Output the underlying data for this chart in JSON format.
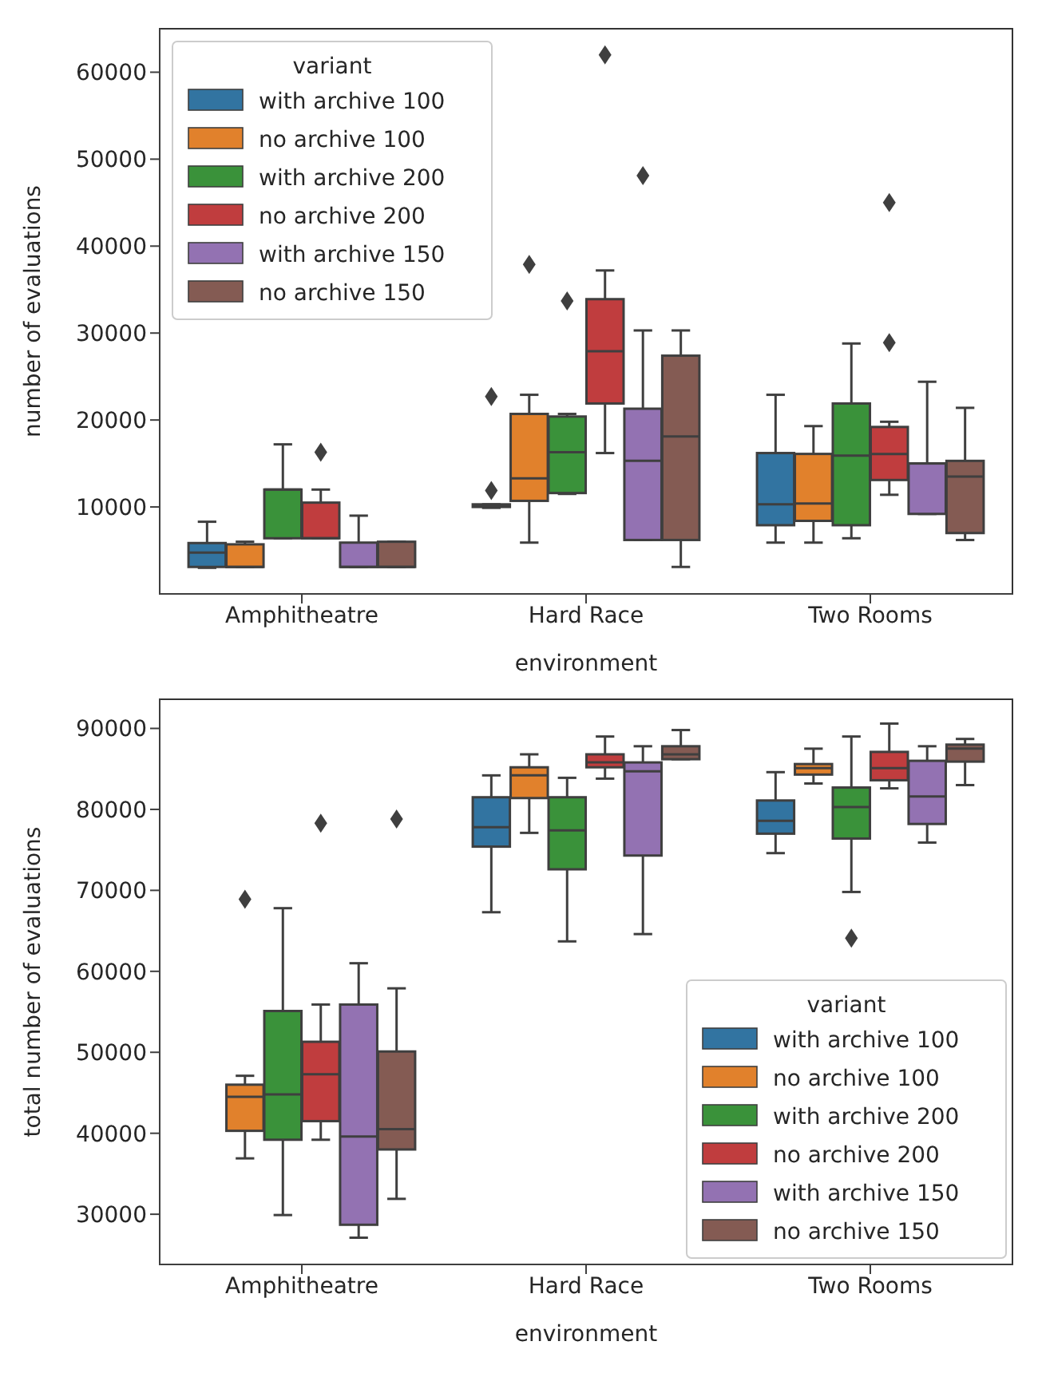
{
  "chart_data": [
    {
      "type": "box",
      "xlabel": "environment",
      "ylabel": "number of evaluations",
      "legend_title": "variant",
      "legend": "top left",
      "categories": [
        "Amphitheatre",
        "Hard Race",
        "Two Rooms"
      ],
      "ylim": [
        0,
        65000
      ],
      "yticks": [
        10000,
        20000,
        30000,
        40000,
        50000,
        60000
      ],
      "series": [
        {
          "name": "with archive 100",
          "color": "#3274a1",
          "boxes": [
            {
              "low": 3000,
              "q1": 3100,
              "median": 4750,
              "q3": 5850,
              "high": 8300
            },
            {
              "low": 9900,
              "q1": 10000,
              "median": 10100,
              "q3": 10300,
              "high": 10300,
              "outliers": [
                22700,
                11900
              ]
            },
            {
              "low": 5900,
              "q1": 7900,
              "median": 10300,
              "q3": 16200,
              "high": 22900
            }
          ]
        },
        {
          "name": "no archive 100",
          "color": "#e1812c",
          "boxes": [
            {
              "low": 3100,
              "q1": 3100,
              "median": 3100,
              "q3": 5700,
              "high": 6000
            },
            {
              "low": 5900,
              "q1": 10700,
              "median": 13300,
              "q3": 20700,
              "high": 22900,
              "outliers": [
                37900
              ]
            },
            {
              "low": 5900,
              "q1": 8400,
              "median": 10400,
              "q3": 16100,
              "high": 19300
            }
          ]
        },
        {
          "name": "with archive 200",
          "color": "#3a923a",
          "boxes": [
            {
              "low": 6400,
              "q1": 6400,
              "median": 12000,
              "q3": 12000,
              "high": 17200
            },
            {
              "low": 11500,
              "q1": 11600,
              "median": 16300,
              "q3": 20400,
              "high": 20700,
              "outliers": [
                33700
              ]
            },
            {
              "low": 6400,
              "q1": 7900,
              "median": 15900,
              "q3": 21900,
              "high": 28800
            }
          ]
        },
        {
          "name": "no archive 200",
          "color": "#c03d3e",
          "boxes": [
            {
              "low": 6400,
              "q1": 6400,
              "median": 6400,
              "q3": 10500,
              "high": 12000,
              "outliers": [
                16300
              ]
            },
            {
              "low": 16200,
              "q1": 21900,
              "median": 27900,
              "q3": 33900,
              "high": 37200,
              "outliers": [
                62000
              ]
            },
            {
              "low": 11400,
              "q1": 13100,
              "median": 16100,
              "q3": 19200,
              "high": 19800,
              "outliers": [
                45000,
                28900
              ]
            }
          ]
        },
        {
          "name": "with archive 150",
          "color": "#9372b2",
          "boxes": [
            {
              "low": 3100,
              "q1": 3100,
              "median": 3100,
              "q3": 5900,
              "high": 9000
            },
            {
              "low": 6200,
              "q1": 6200,
              "median": 15300,
              "q3": 21300,
              "high": 30300,
              "outliers": [
                48100
              ]
            },
            {
              "low": 9200,
              "q1": 9200,
              "median": 15000,
              "q3": 15000,
              "high": 24400
            }
          ]
        },
        {
          "name": "no archive 150",
          "color": "#845b53",
          "boxes": [
            {
              "low": 3100,
              "q1": 3100,
              "median": 3100,
              "q3": 6000,
              "high": 6000
            },
            {
              "low": 3100,
              "q1": 6200,
              "median": 18100,
              "q3": 27400,
              "high": 30300
            },
            {
              "low": 6200,
              "q1": 7000,
              "median": 13500,
              "q3": 15300,
              "high": 21400
            }
          ]
        }
      ]
    },
    {
      "type": "box",
      "xlabel": "environment",
      "ylabel": "total number of evaluations",
      "legend_title": "variant",
      "legend": "bottom right",
      "categories": [
        "Amphitheatre",
        "Hard Race",
        "Two Rooms"
      ],
      "ylim": [
        23800,
        93600
      ],
      "yticks": [
        30000,
        40000,
        50000,
        60000,
        70000,
        80000,
        90000
      ],
      "series": [
        {
          "name": "with archive 100",
          "color": "#3274a1",
          "boxes": [
            null,
            {
              "low": 67300,
              "q1": 75400,
              "median": 77800,
              "q3": 81500,
              "high": 84200
            },
            {
              "low": 74600,
              "q1": 77000,
              "median": 78600,
              "q3": 81100,
              "high": 84600
            }
          ]
        },
        {
          "name": "no archive 100",
          "color": "#e1812c",
          "boxes": [
            {
              "low": 36900,
              "q1": 40300,
              "median": 44500,
              "q3": 46000,
              "high": 47100,
              "outliers": [
                68900
              ]
            },
            {
              "low": 77100,
              "q1": 81400,
              "median": 84200,
              "q3": 85200,
              "high": 86800
            },
            {
              "low": 83200,
              "q1": 84300,
              "median": 85100,
              "q3": 85600,
              "high": 87500
            }
          ]
        },
        {
          "name": "with archive 200",
          "color": "#3a923a",
          "boxes": [
            {
              "low": 29900,
              "q1": 39200,
              "median": 44800,
              "q3": 55100,
              "high": 67800
            },
            {
              "low": 63700,
              "q1": 72600,
              "median": 77400,
              "q3": 81500,
              "high": 83900
            },
            {
              "low": 69800,
              "q1": 76400,
              "median": 80300,
              "q3": 82700,
              "high": 89000,
              "outliers": [
                64100
              ]
            }
          ]
        },
        {
          "name": "no archive 200",
          "color": "#c03d3e",
          "boxes": [
            {
              "low": 39200,
              "q1": 41500,
              "median": 47300,
              "q3": 51300,
              "high": 55900,
              "outliers": [
                78300
              ]
            },
            {
              "low": 83800,
              "q1": 85200,
              "median": 85800,
              "q3": 86800,
              "high": 89000
            },
            {
              "low": 82600,
              "q1": 83600,
              "median": 85100,
              "q3": 87100,
              "high": 90600
            }
          ]
        },
        {
          "name": "with archive 150",
          "color": "#9372b2",
          "boxes": [
            {
              "low": 27100,
              "q1": 28700,
              "median": 39600,
              "q3": 55900,
              "high": 61000
            },
            {
              "low": 64600,
              "q1": 74300,
              "median": 84700,
              "q3": 85800,
              "high": 87800
            },
            {
              "low": 75900,
              "q1": 78200,
              "median": 81600,
              "q3": 86000,
              "high": 87800
            }
          ]
        },
        {
          "name": "no archive 150",
          "color": "#845b53",
          "boxes": [
            {
              "low": 31900,
              "q1": 38000,
              "median": 40500,
              "q3": 50100,
              "high": 57900,
              "outliers": [
                78800
              ]
            },
            {
              "low": 86200,
              "q1": 86200,
              "median": 86800,
              "q3": 87800,
              "high": 89800
            },
            {
              "low": 83000,
              "q1": 85900,
              "median": 87500,
              "q3": 88000,
              "high": 88700
            }
          ]
        }
      ]
    }
  ]
}
